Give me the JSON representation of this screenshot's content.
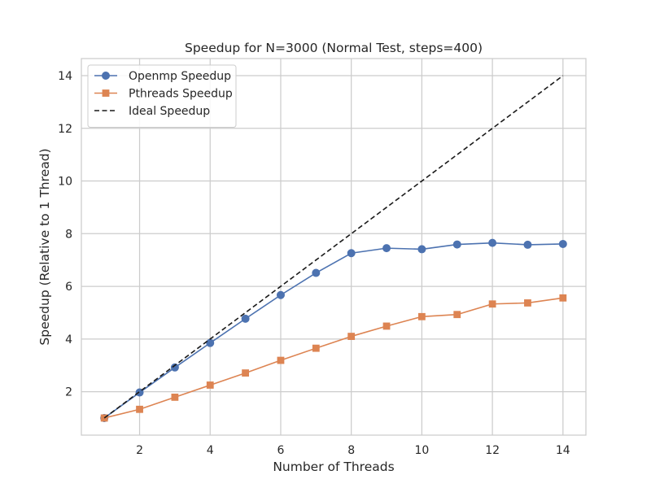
{
  "chart_data": {
    "type": "line",
    "title": "Speedup for N=3000 (Normal Test, steps=400)",
    "xlabel": "Number of Threads",
    "ylabel": "Speedup (Relative to 1 Thread)",
    "x": [
      1,
      2,
      3,
      4,
      5,
      6,
      7,
      8,
      9,
      10,
      11,
      12,
      13,
      14
    ],
    "xticks": [
      2,
      4,
      6,
      8,
      10,
      12,
      14
    ],
    "yticks": [
      2,
      4,
      6,
      8,
      10,
      12,
      14
    ],
    "xlim": [
      0.35,
      14.65
    ],
    "ylim": [
      0.35,
      14.65
    ],
    "grid": true,
    "legend_position": "top-left",
    "series": [
      {
        "name": "Openmp Speedup",
        "color": "#4c72b0",
        "marker": "circle",
        "linestyle": "solid",
        "values": [
          1.0,
          1.97,
          2.92,
          3.85,
          4.77,
          5.67,
          6.51,
          7.26,
          7.45,
          7.41,
          7.59,
          7.65,
          7.58,
          7.61
        ]
      },
      {
        "name": "Pthreads Speedup",
        "color": "#dd8452",
        "marker": "square",
        "linestyle": "solid",
        "values": [
          1.0,
          1.33,
          1.79,
          2.25,
          2.71,
          3.19,
          3.65,
          4.1,
          4.49,
          4.85,
          4.93,
          5.33,
          5.37,
          5.56
        ]
      },
      {
        "name": "Ideal Speedup",
        "color": "#1a1a1a",
        "marker": "none",
        "linestyle": "dashed",
        "values": [
          1,
          2,
          3,
          4,
          5,
          6,
          7,
          8,
          9,
          10,
          11,
          12,
          13,
          14
        ]
      }
    ]
  }
}
